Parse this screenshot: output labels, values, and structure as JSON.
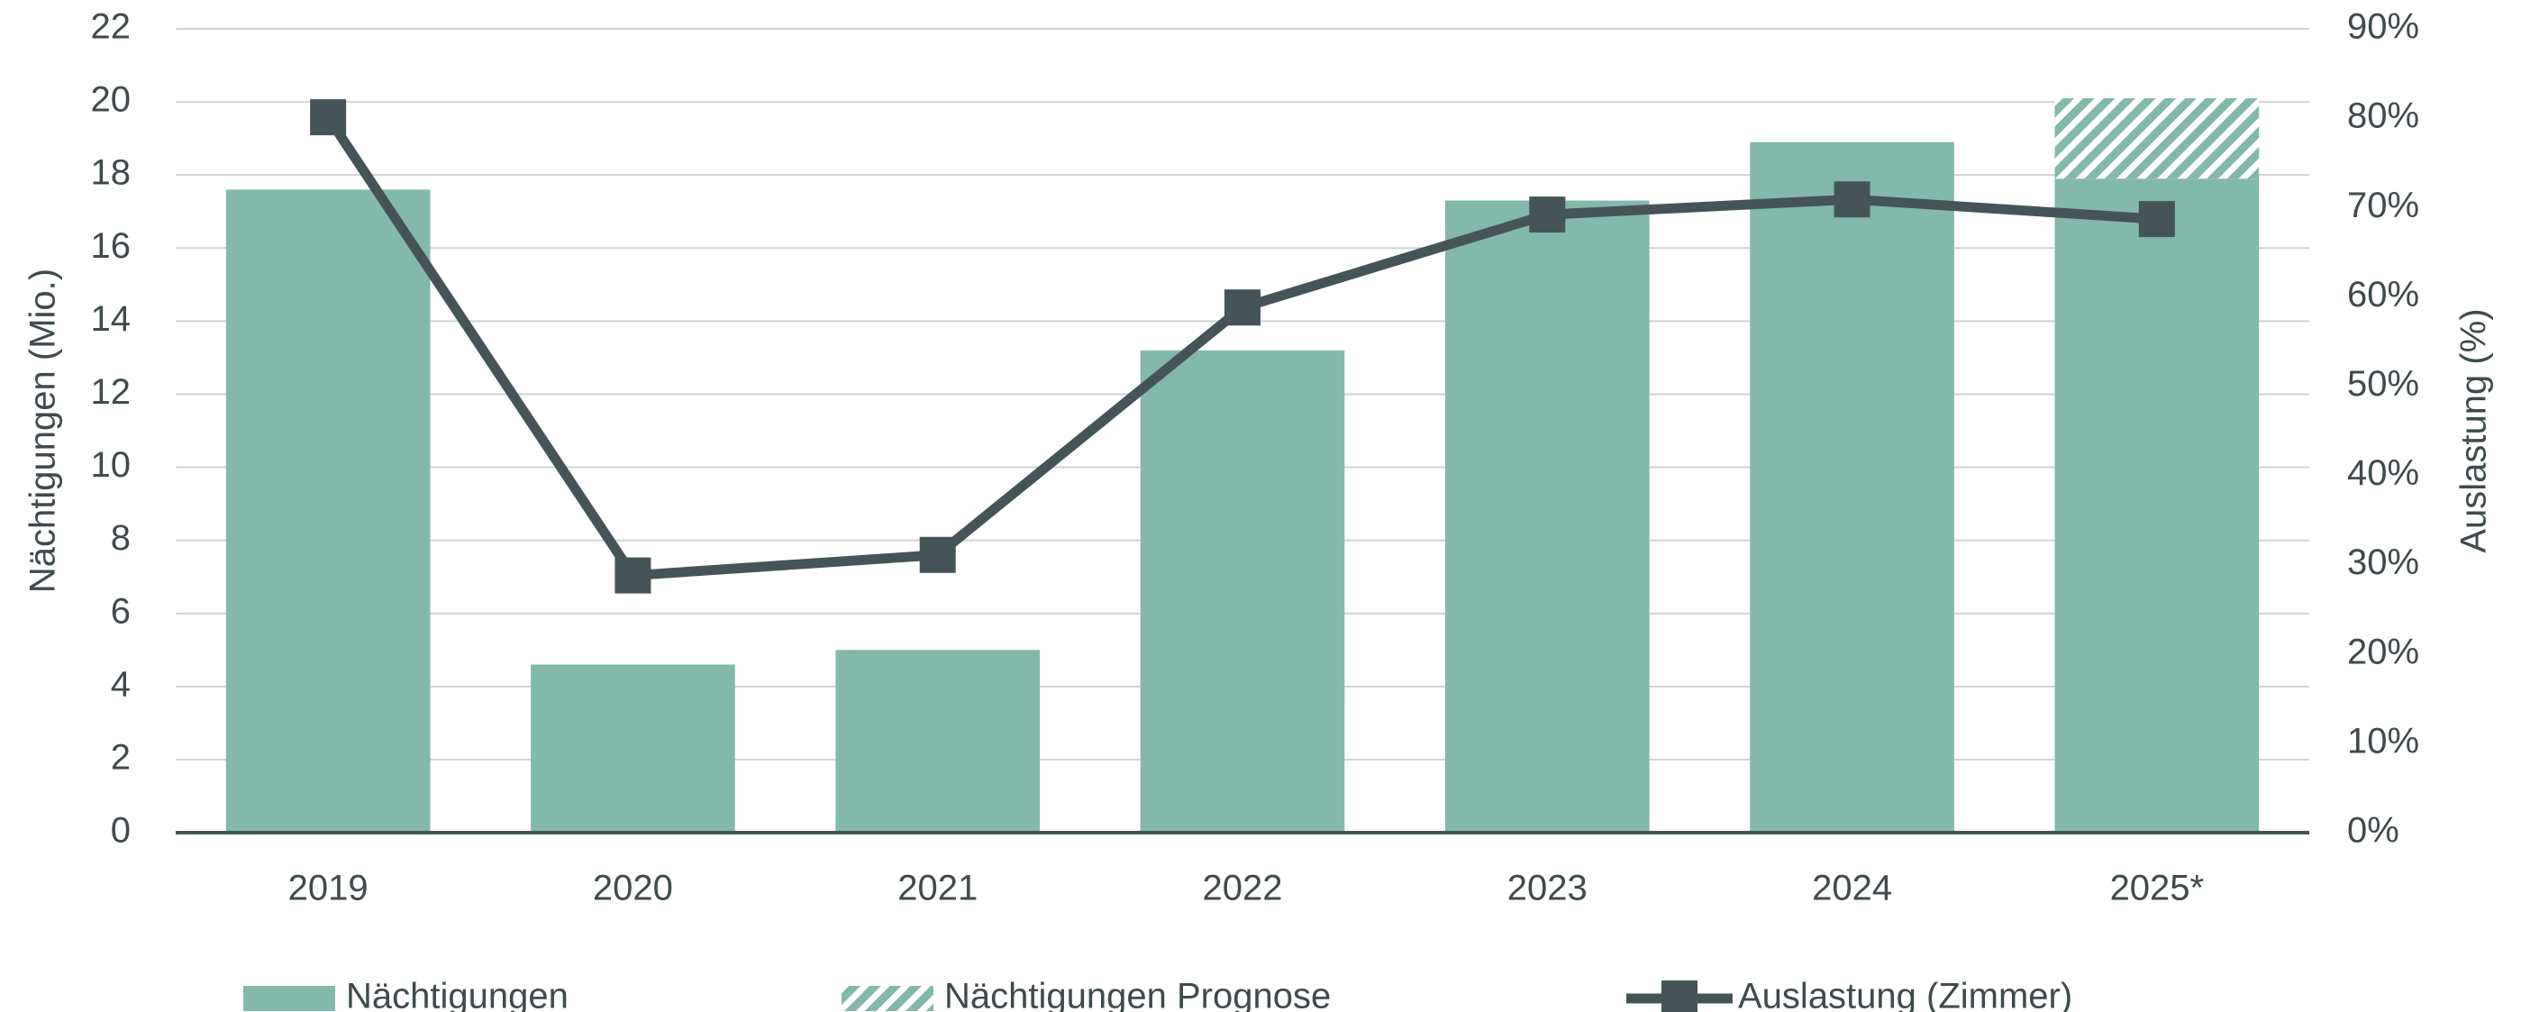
{
  "chart_data": {
    "type": "combo",
    "categories": [
      "2019",
      "2020",
      "2021",
      "2022",
      "2023",
      "2024",
      "2025*"
    ],
    "series": [
      {
        "name": "Nächtigungen",
        "type": "bar",
        "color": "#82b9ab",
        "values": [
          17.6,
          4.6,
          5.0,
          13.2,
          17.3,
          18.9,
          17.9
        ]
      },
      {
        "name": "Nächtigungen Prognose",
        "type": "bar",
        "color": "#82b9ab",
        "pattern": "hatch",
        "values": [
          null,
          null,
          null,
          null,
          null,
          null,
          2.2
        ]
      },
      {
        "name": "Auslastung (Zimmer)",
        "type": "line",
        "axis": "y2",
        "color": "#455557",
        "values": [
          80.1,
          28.8,
          31.1,
          58.8,
          69.2,
          70.9,
          68.7
        ]
      }
    ],
    "y_label": "Nächtigungen (Mio.)",
    "y2_label": "Auslastung (%)",
    "ylim": [
      0,
      22
    ],
    "yticks": [
      0,
      2,
      4,
      6,
      8,
      10,
      12,
      14,
      16,
      18,
      20,
      22
    ],
    "y2lim": [
      0,
      90
    ],
    "y2ticks": [
      {
        "value": 0,
        "label": "0%"
      },
      {
        "value": 10,
        "label": "10%"
      },
      {
        "value": 20,
        "label": "20%"
      },
      {
        "value": 30,
        "label": "30%"
      },
      {
        "value": 40,
        "label": "40%"
      },
      {
        "value": 50,
        "label": "50%"
      },
      {
        "value": 60,
        "label": "60%"
      },
      {
        "value": 70,
        "label": "70%"
      },
      {
        "value": 80,
        "label": "80%"
      },
      {
        "value": 90,
        "label": "90%"
      }
    ],
    "grid": true,
    "legend": "bottom"
  }
}
